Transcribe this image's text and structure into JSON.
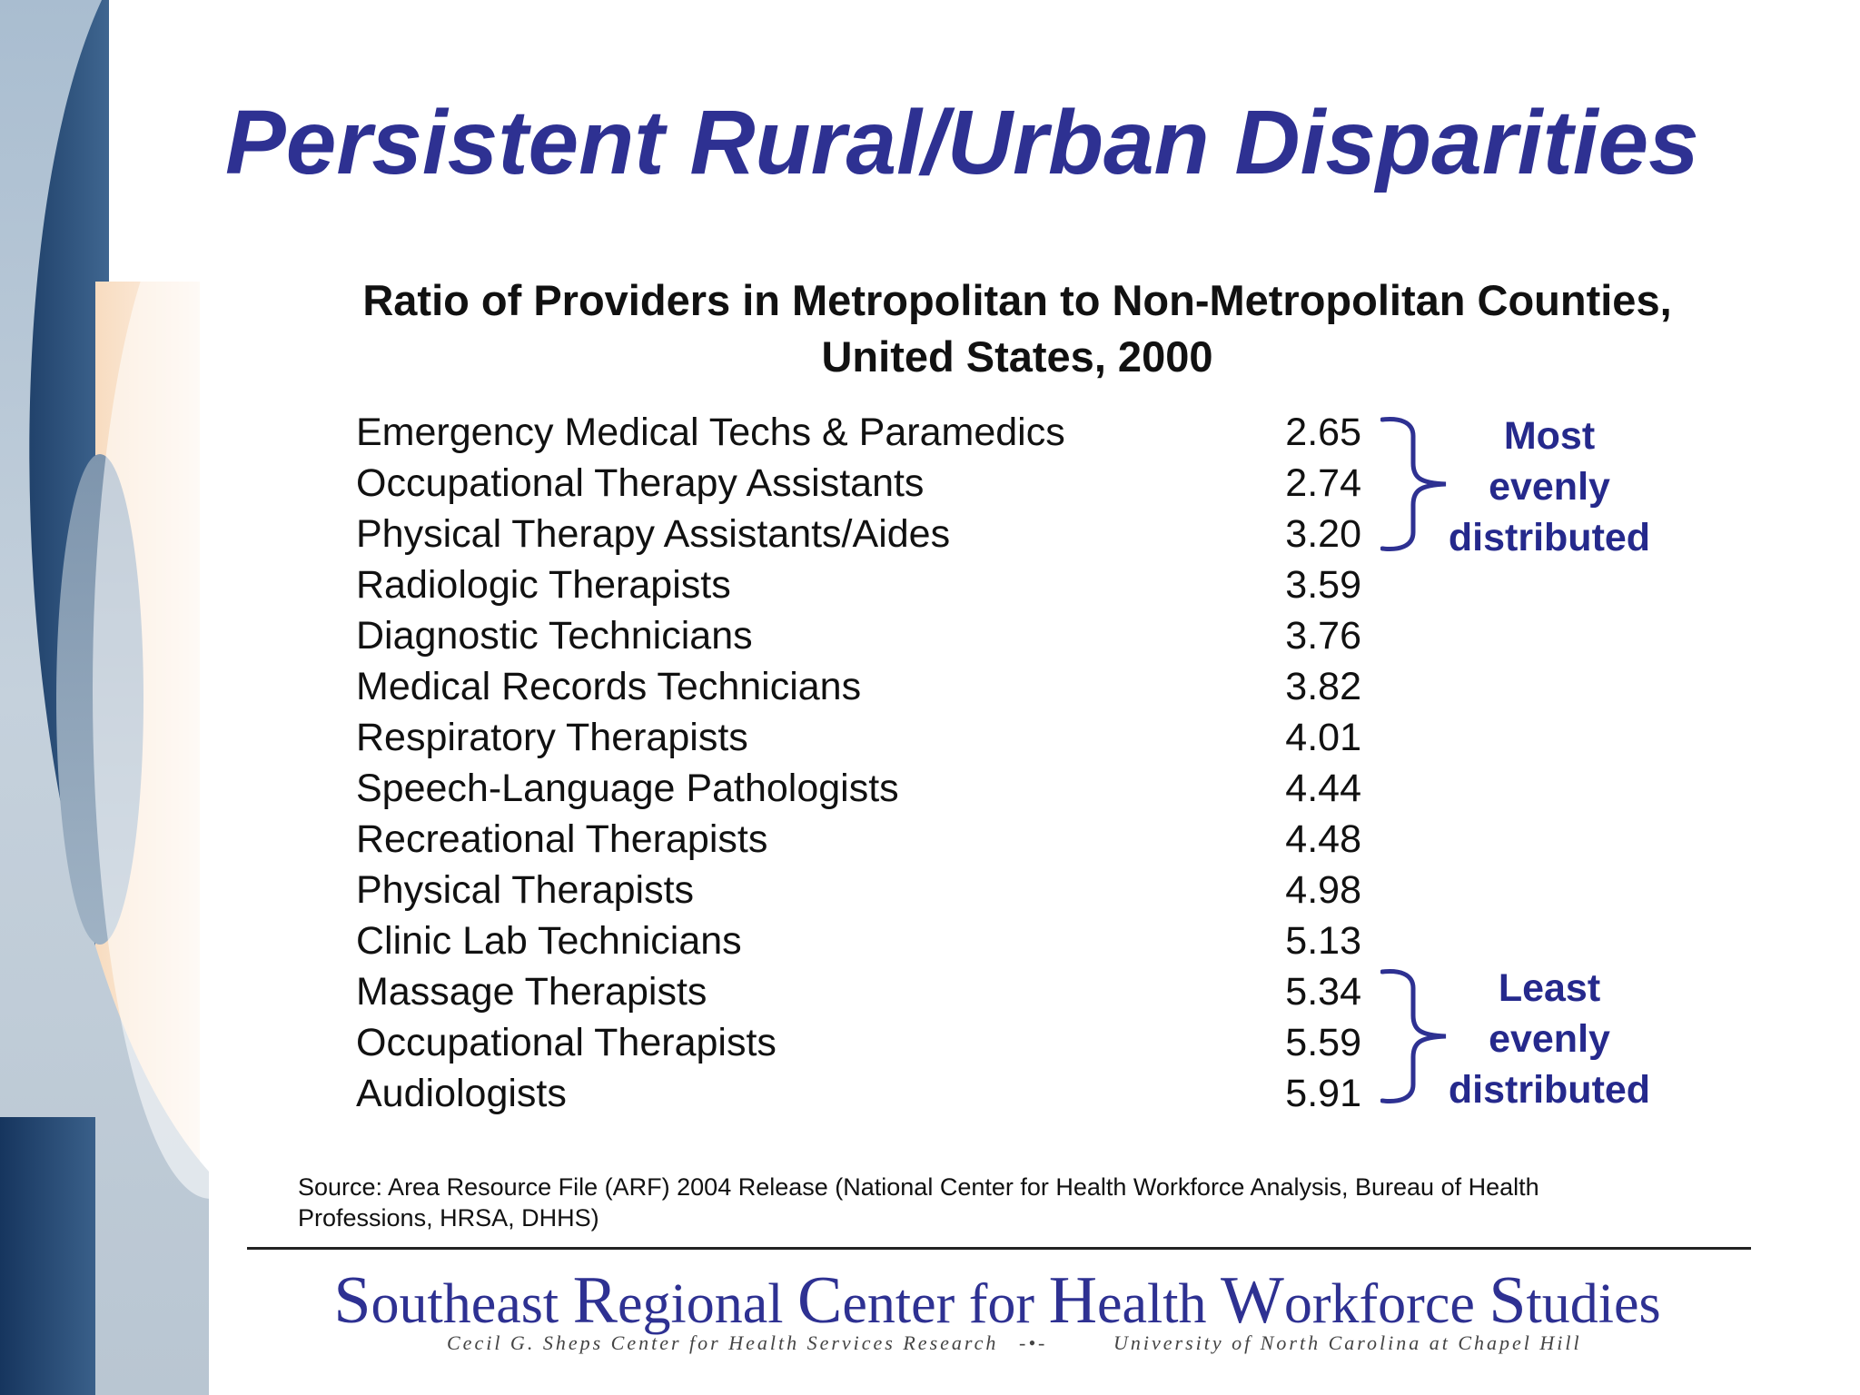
{
  "slide": {
    "title": "Persistent Rural/Urban Disparities",
    "subtitle_line1": "Ratio of Providers in Metropolitan to Non-Metropolitan Counties,",
    "subtitle_line2": "United States, 2000"
  },
  "table": {
    "rows": [
      {
        "label": "Emergency Medical Techs & Paramedics",
        "value": "2.65"
      },
      {
        "label": "Occupational Therapy Assistants",
        "value": "2.74"
      },
      {
        "label": "Physical Therapy Assistants/Aides",
        "value": "3.20"
      },
      {
        "label": "Radiologic Therapists",
        "value": "3.59"
      },
      {
        "label": "Diagnostic Technicians",
        "value": "3.76"
      },
      {
        "label": "Medical Records Technicians",
        "value": "3.82"
      },
      {
        "label": "Respiratory Therapists",
        "value": "4.01"
      },
      {
        "label": "Speech-Language Pathologists",
        "value": "4.44"
      },
      {
        "label": "Recreational Therapists",
        "value": "4.48"
      },
      {
        "label": "Physical Therapists",
        "value": "4.98"
      },
      {
        "label": "Clinic Lab Technicians",
        "value": "5.13"
      },
      {
        "label": "Massage Therapists",
        "value": "5.34"
      },
      {
        "label": "Occupational Therapists",
        "value": "5.59"
      },
      {
        "label": "Audiologists",
        "value": "5.91"
      }
    ]
  },
  "annotations": {
    "most": {
      "line1": "Most",
      "line2": "evenly",
      "line3": "distributed"
    },
    "least": {
      "line1": "Least",
      "line2": "evenly",
      "line3": "distributed"
    }
  },
  "source": {
    "text": "Source:  Area Resource File (ARF) 2004 Release (National Center for Health Workforce Analysis, Bureau of Health Professions, HRSA, DHHS)"
  },
  "footer": {
    "org_s": "S",
    "org_outheast": "outheast ",
    "org_r": "R",
    "org_egional": "egional ",
    "org_c": "C",
    "org_enter": "enter for ",
    "org_h": "H",
    "org_ealth": "ealth ",
    "org_w": "W",
    "org_orkforce": "orkforce ",
    "org_s2": "S",
    "org_tudies": "tudies",
    "sub_left": "Cecil G. Sheps Center for Health Services Research",
    "sub_mid": "-•-",
    "sub_right": "University of North Carolina at Chapel Hill"
  },
  "colors": {
    "title": "#2e3192",
    "annotation": "#25298c",
    "bracket": "#2e3192"
  }
}
